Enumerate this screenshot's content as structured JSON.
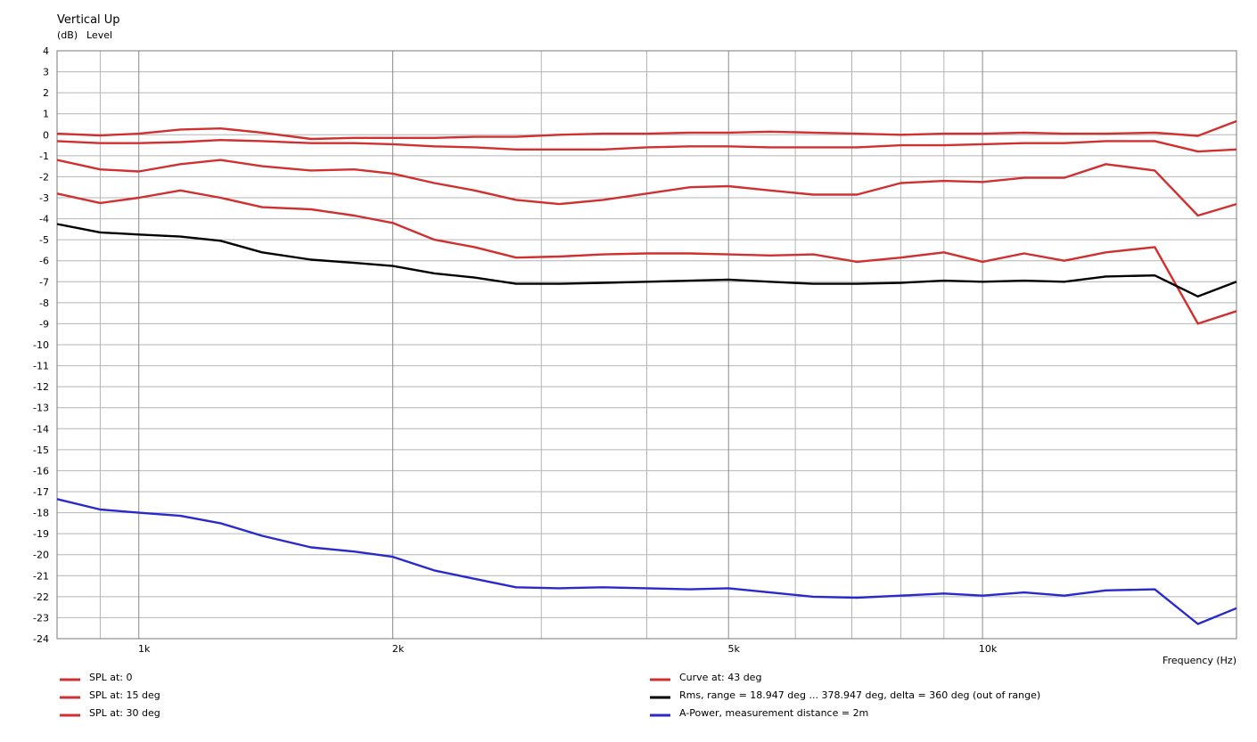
{
  "chart_data": {
    "type": "line",
    "title": "Vertical Up",
    "ylabel_unit": "(dB)",
    "ylabel": "Level",
    "xlabel": "Frequency  (Hz)",
    "x_scale": "log",
    "xlim": [
      800,
      20000
    ],
    "ylim": [
      -24,
      4
    ],
    "y_ticks": [
      4,
      3,
      2,
      1,
      0,
      -1,
      -2,
      -3,
      -4,
      -5,
      -6,
      -7,
      -8,
      -9,
      -10,
      -11,
      -12,
      -13,
      -14,
      -15,
      -16,
      -17,
      -18,
      -19,
      -20,
      -21,
      -22,
      -23,
      -24
    ],
    "x_tick_labels": [
      {
        "value": 1000,
        "label": "1k"
      },
      {
        "value": 2000,
        "label": "2k"
      },
      {
        "value": 5000,
        "label": "5k"
      },
      {
        "value": 10000,
        "label": "10k"
      }
    ],
    "grid": true,
    "legend": "bottom",
    "series": [
      {
        "name": "SPL at: 0",
        "color": "#d03030",
        "x": [
          800,
          900,
          1000,
          1120,
          1250,
          1400,
          1600,
          1800,
          2000,
          2240,
          2500,
          2800,
          3150,
          3550,
          4000,
          4500,
          5000,
          5600,
          6300,
          7100,
          8000,
          9000,
          10000,
          11200,
          12500,
          14000,
          16000,
          18000,
          20000
        ],
        "y": [
          0.05,
          -0.03,
          0.05,
          0.25,
          0.3,
          0.1,
          -0.2,
          -0.15,
          -0.15,
          -0.15,
          -0.1,
          -0.1,
          0.0,
          0.05,
          0.05,
          0.1,
          0.1,
          0.15,
          0.1,
          0.05,
          0.0,
          0.05,
          0.05,
          0.1,
          0.05,
          0.05,
          0.1,
          -0.05,
          0.65
        ]
      },
      {
        "name": "SPL at: 15 deg",
        "color": "#d03030",
        "x": [
          800,
          900,
          1000,
          1120,
          1250,
          1400,
          1600,
          1800,
          2000,
          2240,
          2500,
          2800,
          3150,
          3550,
          4000,
          4500,
          5000,
          5600,
          6300,
          7100,
          8000,
          9000,
          10000,
          11200,
          12500,
          14000,
          16000,
          18000,
          20000
        ],
        "y": [
          -0.3,
          -0.4,
          -0.4,
          -0.35,
          -0.25,
          -0.3,
          -0.4,
          -0.4,
          -0.45,
          -0.55,
          -0.6,
          -0.7,
          -0.7,
          -0.7,
          -0.6,
          -0.55,
          -0.55,
          -0.6,
          -0.6,
          -0.6,
          -0.5,
          -0.5,
          -0.45,
          -0.4,
          -0.4,
          -0.3,
          -0.3,
          -0.8,
          -0.7
        ]
      },
      {
        "name": "SPL at: 30 deg",
        "color": "#d03030",
        "x": [
          800,
          900,
          1000,
          1120,
          1250,
          1400,
          1600,
          1800,
          2000,
          2240,
          2500,
          2800,
          3150,
          3550,
          4000,
          4500,
          5000,
          5600,
          6300,
          7100,
          8000,
          9000,
          10000,
          11200,
          12500,
          14000,
          16000,
          18000,
          20000
        ],
        "y": [
          -1.2,
          -1.65,
          -1.75,
          -1.4,
          -1.2,
          -1.5,
          -1.7,
          -1.65,
          -1.85,
          -2.3,
          -2.65,
          -3.1,
          -3.3,
          -3.1,
          -2.8,
          -2.5,
          -2.45,
          -2.65,
          -2.85,
          -2.85,
          -2.3,
          -2.2,
          -2.25,
          -2.05,
          -2.05,
          -1.4,
          -1.7,
          -3.85,
          -3.3
        ]
      },
      {
        "name": "Curve at: 43 deg",
        "color": "#d03030",
        "x": [
          800,
          900,
          1000,
          1120,
          1250,
          1400,
          1600,
          1800,
          2000,
          2240,
          2500,
          2800,
          3150,
          3550,
          4000,
          4500,
          5000,
          5600,
          6300,
          7100,
          8000,
          9000,
          10000,
          11200,
          12500,
          14000,
          16000,
          18000,
          20000
        ],
        "y": [
          -2.8,
          -3.25,
          -3.0,
          -2.65,
          -3.0,
          -3.45,
          -3.55,
          -3.85,
          -4.2,
          -5.0,
          -5.35,
          -5.85,
          -5.8,
          -5.7,
          -5.65,
          -5.65,
          -5.7,
          -5.75,
          -5.7,
          -6.05,
          -5.85,
          -5.6,
          -6.05,
          -5.65,
          -6.0,
          -5.6,
          -5.35,
          -9.0,
          -8.4
        ]
      },
      {
        "name": "Rms, range = 18.947 deg ... 378.947 deg, delta = 360 deg (out of range)",
        "color": "#000000",
        "x": [
          800,
          900,
          1000,
          1120,
          1250,
          1400,
          1600,
          1800,
          2000,
          2240,
          2500,
          2800,
          3150,
          3550,
          4000,
          4500,
          5000,
          5600,
          6300,
          7100,
          8000,
          9000,
          10000,
          11200,
          12500,
          14000,
          16000,
          18000,
          20000
        ],
        "y": [
          -4.25,
          -4.65,
          -4.75,
          -4.85,
          -5.05,
          -5.6,
          -5.95,
          -6.1,
          -6.25,
          -6.6,
          -6.8,
          -7.1,
          -7.1,
          -7.05,
          -7.0,
          -6.95,
          -6.9,
          -7.0,
          -7.1,
          -7.1,
          -7.05,
          -6.95,
          -7.0,
          -6.95,
          -7.0,
          -6.75,
          -6.7,
          -7.7,
          -7.0
        ]
      },
      {
        "name": "A-Power, measurement distance = 2m",
        "color": "#2a2acc",
        "x": [
          800,
          900,
          1000,
          1120,
          1250,
          1400,
          1600,
          1800,
          2000,
          2240,
          2500,
          2800,
          3150,
          3550,
          4000,
          4500,
          5000,
          5600,
          6300,
          7100,
          8000,
          9000,
          10000,
          11200,
          12500,
          14000,
          16000,
          18000,
          20000
        ],
        "y": [
          -17.35,
          -17.85,
          -18.0,
          -18.15,
          -18.5,
          -19.1,
          -19.65,
          -19.85,
          -20.1,
          -20.75,
          -21.15,
          -21.55,
          -21.6,
          -21.55,
          -21.6,
          -21.65,
          -21.6,
          -21.8,
          -22.0,
          -22.05,
          -21.95,
          -21.85,
          -21.95,
          -21.8,
          -21.95,
          -21.7,
          -21.65,
          -23.3,
          -22.55
        ]
      }
    ]
  }
}
